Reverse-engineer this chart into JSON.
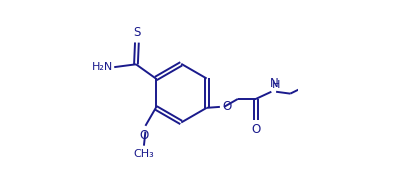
{
  "bg_color": "#ffffff",
  "line_color": "#1a1a8c",
  "line_width": 1.4,
  "figsize": [
    4.06,
    1.92
  ],
  "dpi": 100,
  "xlim": [
    0.0,
    1.0
  ],
  "ylim": [
    0.0,
    1.0
  ]
}
